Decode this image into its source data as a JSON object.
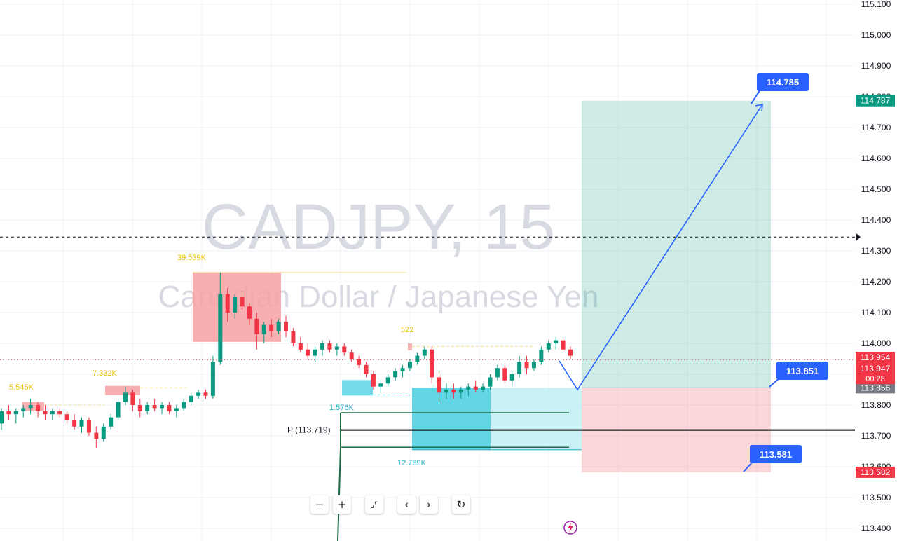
{
  "chart_data": {
    "type": "candlestick",
    "symbol_title": "CADJPY, 15",
    "symbol_subtitle": "Canadian Dollar / Japanese Yen",
    "ylim": [
      113.4,
      115.1
    ],
    "y_ticks": [
      "115.100",
      "115.000",
      "114.900",
      "114.800",
      "114.700",
      "114.600",
      "114.500",
      "114.400",
      "114.300",
      "114.200",
      "114.100",
      "114.000",
      "113.900",
      "113.800",
      "113.700",
      "113.600",
      "113.500",
      "113.400"
    ],
    "grid": true,
    "crosshair_price": 114.345,
    "current_price": 113.947,
    "current_price_label": "113.947",
    "countdown": "00:28",
    "last_high_label": "113.954",
    "price_tags": [
      {
        "label": "114.787",
        "value": 114.787,
        "color": "#089981"
      },
      {
        "label": "113.856",
        "value": 113.856,
        "color": "#787b86"
      },
      {
        "label": "113.582",
        "value": 113.582,
        "color": "#f23645"
      }
    ],
    "callouts": [
      {
        "label": "114.785",
        "value": 114.785
      },
      {
        "label": "113.851",
        "value": 113.851
      },
      {
        "label": "113.581",
        "value": 113.581
      }
    ],
    "position": {
      "entry": 113.856,
      "target": 114.787,
      "stop": 113.582
    },
    "pivot": {
      "label": "P (113.719)",
      "value": 113.719
    },
    "volume_labels": [
      {
        "label": "39.539K",
        "value": 114.23,
        "color": "#e8c200"
      },
      {
        "label": "7.332K",
        "value": 113.85,
        "color": "#e8c200"
      },
      {
        "label": "5.545K",
        "value": 113.81,
        "color": "#e8c200"
      },
      {
        "label": "522",
        "value": 113.99,
        "color": "#e8c200"
      },
      {
        "label": "1.576K",
        "value": 113.78,
        "color": "#1cb3c8"
      },
      {
        "label": "12.769K",
        "value": 113.66,
        "color": "#1cb3c8"
      }
    ],
    "candles": [
      [
        113.74,
        113.79,
        113.72,
        113.78
      ],
      [
        113.78,
        113.8,
        113.75,
        113.77
      ],
      [
        113.77,
        113.79,
        113.74,
        113.78
      ],
      [
        113.78,
        113.8,
        113.76,
        113.79
      ],
      [
        113.79,
        113.82,
        113.77,
        113.8
      ],
      [
        113.8,
        113.81,
        113.76,
        113.78
      ],
      [
        113.78,
        113.8,
        113.75,
        113.77
      ],
      [
        113.77,
        113.79,
        113.75,
        113.78
      ],
      [
        113.78,
        113.79,
        113.76,
        113.77
      ],
      [
        113.77,
        113.78,
        113.74,
        113.75
      ],
      [
        113.75,
        113.77,
        113.72,
        113.73
      ],
      [
        113.73,
        113.76,
        113.71,
        113.75
      ],
      [
        113.75,
        113.76,
        113.7,
        113.71
      ],
      [
        113.71,
        113.73,
        113.66,
        113.69
      ],
      [
        113.69,
        113.74,
        113.68,
        113.73
      ],
      [
        113.73,
        113.77,
        113.72,
        113.76
      ],
      [
        113.76,
        113.82,
        113.75,
        113.81
      ],
      [
        113.81,
        113.86,
        113.8,
        113.84
      ],
      [
        113.84,
        113.85,
        113.78,
        113.8
      ],
      [
        113.8,
        113.82,
        113.76,
        113.78
      ],
      [
        113.78,
        113.81,
        113.77,
        113.8
      ],
      [
        113.8,
        113.82,
        113.78,
        113.79
      ],
      [
        113.79,
        113.81,
        113.77,
        113.8
      ],
      [
        113.8,
        113.81,
        113.77,
        113.78
      ],
      [
        113.78,
        113.8,
        113.76,
        113.79
      ],
      [
        113.79,
        113.82,
        113.78,
        113.81
      ],
      [
        113.81,
        113.84,
        113.8,
        113.83
      ],
      [
        113.83,
        113.85,
        113.82,
        113.84
      ],
      [
        113.84,
        113.85,
        113.82,
        113.83
      ],
      [
        113.83,
        113.96,
        113.82,
        113.94
      ],
      [
        113.94,
        114.23,
        113.93,
        114.16
      ],
      [
        114.16,
        114.18,
        114.07,
        114.1
      ],
      [
        114.1,
        114.16,
        114.08,
        114.15
      ],
      [
        114.15,
        114.17,
        114.11,
        114.12
      ],
      [
        114.12,
        114.13,
        114.06,
        114.08
      ],
      [
        114.08,
        114.1,
        113.98,
        114.03
      ],
      [
        114.03,
        114.07,
        114.0,
        114.06
      ],
      [
        114.06,
        114.08,
        114.02,
        114.04
      ],
      [
        114.04,
        114.08,
        114.03,
        114.07
      ],
      [
        114.07,
        114.09,
        114.02,
        114.04
      ],
      [
        114.04,
        114.05,
        113.99,
        114.0
      ],
      [
        114.0,
        114.02,
        113.97,
        113.98
      ],
      [
        113.98,
        114.0,
        113.95,
        113.96
      ],
      [
        113.96,
        113.99,
        113.94,
        113.98
      ],
      [
        113.98,
        114.01,
        113.96,
        114.0
      ],
      [
        114.0,
        114.01,
        113.97,
        113.98
      ],
      [
        113.98,
        114.0,
        113.96,
        113.99
      ],
      [
        113.99,
        114.0,
        113.96,
        113.97
      ],
      [
        113.97,
        113.98,
        113.94,
        113.95
      ],
      [
        113.95,
        113.96,
        113.92,
        113.93
      ],
      [
        113.93,
        113.94,
        113.89,
        113.9
      ],
      [
        113.9,
        113.91,
        113.85,
        113.86
      ],
      [
        113.86,
        113.88,
        113.84,
        113.87
      ],
      [
        113.87,
        113.9,
        113.86,
        113.89
      ],
      [
        113.89,
        113.92,
        113.88,
        113.91
      ],
      [
        113.91,
        113.93,
        113.89,
        113.92
      ],
      [
        113.92,
        113.95,
        113.91,
        113.94
      ],
      [
        113.94,
        113.97,
        113.93,
        113.96
      ],
      [
        113.96,
        113.99,
        113.95,
        113.98
      ],
      [
        113.98,
        113.99,
        113.87,
        113.89
      ],
      [
        113.89,
        113.91,
        113.81,
        113.84
      ],
      [
        113.84,
        113.87,
        113.82,
        113.85
      ],
      [
        113.85,
        113.87,
        113.82,
        113.84
      ],
      [
        113.84,
        113.86,
        113.82,
        113.85
      ],
      [
        113.85,
        113.87,
        113.83,
        113.86
      ],
      [
        113.86,
        113.88,
        113.84,
        113.85
      ],
      [
        113.85,
        113.87,
        113.84,
        113.86
      ],
      [
        113.86,
        113.9,
        113.85,
        113.89
      ],
      [
        113.89,
        113.93,
        113.88,
        113.92
      ],
      [
        113.92,
        113.93,
        113.87,
        113.88
      ],
      [
        113.88,
        113.91,
        113.86,
        113.9
      ],
      [
        113.9,
        113.96,
        113.89,
        113.94
      ],
      [
        113.94,
        113.96,
        113.9,
        113.92
      ],
      [
        113.92,
        113.95,
        113.91,
        113.94
      ],
      [
        113.94,
        113.99,
        113.93,
        113.98
      ],
      [
        113.98,
        114.01,
        113.97,
        114.0
      ],
      [
        114.0,
        114.02,
        113.98,
        114.01
      ],
      [
        114.01,
        114.02,
        113.97,
        113.98
      ],
      [
        113.98,
        113.99,
        113.95,
        113.96
      ]
    ]
  },
  "toolbar": {
    "zoom_out": "−",
    "zoom_in": "+",
    "reset_scale": "⌟⌜",
    "scroll_left": "‹",
    "scroll_right": "›",
    "reset": "↻"
  }
}
